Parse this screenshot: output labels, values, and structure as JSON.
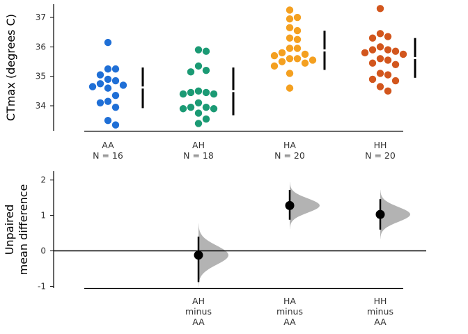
{
  "chart_data": [
    {
      "type": "scatter",
      "subtype": "swarm",
      "ylabel": "CTmax (degrees C)",
      "ylim": [
        33.15,
        37.45
      ],
      "yticks": [
        34,
        35,
        36,
        37
      ],
      "groups": [
        {
          "name": "AA",
          "n_label": "N = 16",
          "color": "#1f6fd6",
          "values": [
            36.15,
            35.25,
            35.25,
            35.05,
            34.9,
            34.85,
            34.75,
            34.7,
            34.65,
            34.6,
            34.35,
            34.15,
            34.1,
            33.95,
            33.5,
            33.35
          ],
          "mean": 34.62,
          "sd_low": 33.92,
          "sd_high": 35.3
        },
        {
          "name": "AH",
          "n_label": "N = 18",
          "color": "#1b9a74",
          "values": [
            35.9,
            35.85,
            35.35,
            35.2,
            35.15,
            34.5,
            34.45,
            34.45,
            34.4,
            34.4,
            34.1,
            33.95,
            33.95,
            33.9,
            33.9,
            33.75,
            33.55,
            33.4
          ],
          "mean": 34.5,
          "sd_low": 33.68,
          "sd_high": 35.3
        },
        {
          "name": "HA",
          "n_label": "N = 20",
          "color": "#f4a020",
          "values": [
            37.25,
            37.0,
            36.95,
            36.65,
            36.55,
            36.3,
            36.25,
            35.95,
            35.95,
            35.8,
            35.75,
            35.7,
            35.6,
            35.6,
            35.55,
            35.5,
            35.45,
            35.35,
            35.1,
            34.6
          ],
          "mean": 35.88,
          "sd_low": 35.22,
          "sd_high": 36.55
        },
        {
          "name": "HH",
          "n_label": "N = 20",
          "color": "#d2561d",
          "values": [
            37.3,
            36.45,
            36.35,
            36.3,
            36.0,
            35.9,
            35.9,
            35.85,
            35.8,
            35.75,
            35.6,
            35.55,
            35.45,
            35.4,
            35.1,
            35.05,
            34.9,
            34.85,
            34.65,
            34.5
          ],
          "mean": 35.62,
          "sd_low": 34.95,
          "sd_high": 36.3
        }
      ]
    },
    {
      "type": "scatter",
      "subtype": "effect-size-with-bootstrap-distribution",
      "ylabel_lines": [
        "Unpaired",
        "mean difference"
      ],
      "ylim": [
        -1.05,
        2.25
      ],
      "yticks": [
        -1,
        0,
        1,
        2
      ],
      "zero_line": true,
      "distribution_color": "#b3b3b3",
      "comparisons": [
        {
          "label_lines": [
            "AH",
            "minus",
            "AA"
          ],
          "group_position": 1,
          "mean_diff": -0.12,
          "ci_low": -0.88,
          "ci_high": 0.4,
          "dist_sd": 0.27
        },
        {
          "label_lines": [
            "HA",
            "minus",
            "AA"
          ],
          "group_position": 2,
          "mean_diff": 1.28,
          "ci_low": 0.88,
          "ci_high": 1.72,
          "dist_sd": 0.2
        },
        {
          "label_lines": [
            "HH",
            "minus",
            "AA"
          ],
          "group_position": 3,
          "mean_diff": 1.03,
          "ci_low": 0.6,
          "ci_high": 1.46,
          "dist_sd": 0.21
        }
      ]
    }
  ]
}
